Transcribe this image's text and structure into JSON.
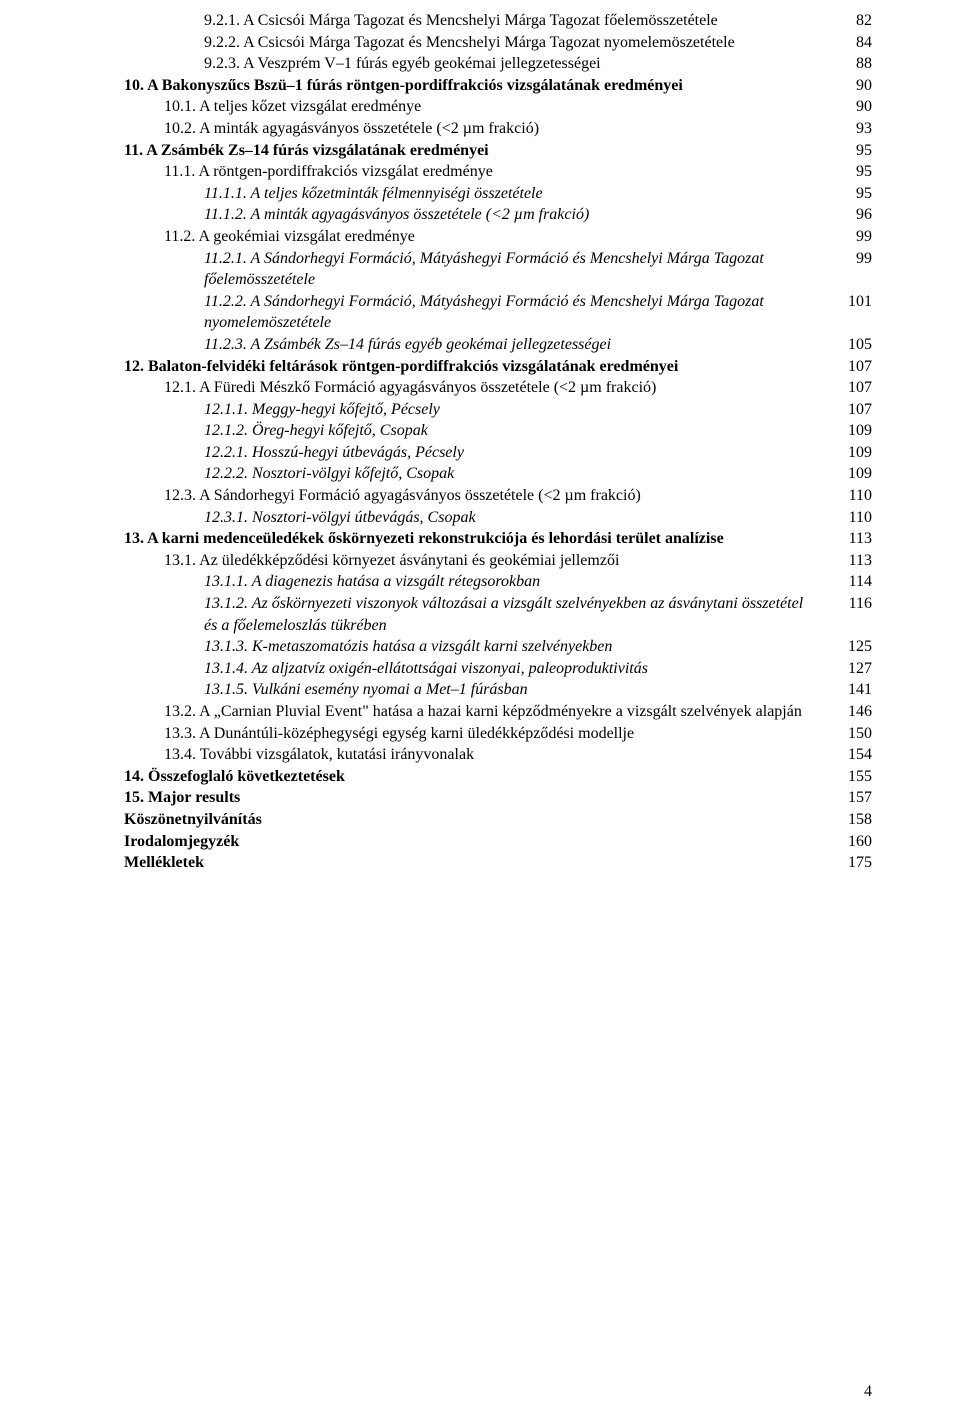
{
  "page_number": "4",
  "entries": [
    {
      "indent": 2,
      "style": "plain",
      "text": "9.2.1. A Csicsói Márga Tagozat és Mencshelyi Márga Tagozat  főelemösszetétele",
      "page": "82"
    },
    {
      "indent": 2,
      "style": "plain",
      "text": "9.2.2. A Csicsói Márga Tagozat és Mencshelyi Márga Tagozat nyomelemöszetétele",
      "page": "84"
    },
    {
      "indent": 2,
      "style": "plain",
      "text": "9.2.3. A Veszprém V–1 fúrás egyéb geokémai jellegzetességei",
      "page": "88"
    },
    {
      "indent": 0,
      "style": "bold",
      "text": "10. A Bakonyszűcs Bszü–1 fúrás röntgen-pordiffrakciós vizsgálatának eredményei",
      "page": "90"
    },
    {
      "indent": 1,
      "style": "plain",
      "text": "10.1. A teljes kőzet vizsgálat eredménye",
      "page": "90"
    },
    {
      "indent": 1,
      "style": "plain",
      "text": "10.2. A minták agyagásványos összetétele (<2 µm frakció)",
      "page": "93"
    },
    {
      "indent": 0,
      "style": "bold",
      "text": "11. A Zsámbék Zs–14 fúrás vizsgálatának eredményei",
      "page": "95"
    },
    {
      "indent": 1,
      "style": "plain",
      "text": "11.1. A röntgen-pordiffrakciós vizsgálat eredménye",
      "page": "95"
    },
    {
      "indent": 2,
      "style": "italic",
      "text": "11.1.1. A teljes kőzetminták félmennyiségi összetétele",
      "page": "95"
    },
    {
      "indent": 2,
      "style": "italic",
      "text": "11.1.2. A minták agyagásványos összetétele (<2 µm frakció)",
      "page": "96"
    },
    {
      "indent": 1,
      "style": "plain",
      "text": "11.2. A geokémiai vizsgálat eredménye",
      "page": "99"
    },
    {
      "indent": 2,
      "style": "italic",
      "text": "11.2.1. A Sándorhegyi Formáció, Mátyáshegyi Formáció és Mencshelyi Márga Tagozat főelemösszetétele",
      "page": "99"
    },
    {
      "indent": 2,
      "style": "italic",
      "text": "11.2.2. A Sándorhegyi Formáció, Mátyáshegyi Formáció és Mencshelyi Márga Tagozat nyomelemöszetétele",
      "page": "101"
    },
    {
      "indent": 2,
      "style": "italic",
      "text": "11.2.3. A Zsámbék Zs–14 fúrás egyéb geokémai jellegzetességei",
      "page": "105"
    },
    {
      "indent": 0,
      "style": "bold",
      "text": "12. Balaton-felvidéki feltárások röntgen-pordiffrakciós vizsgálatának eredményei",
      "page": "107"
    },
    {
      "indent": 1,
      "style": "plain",
      "text": "12.1. A Füredi Mészkő Formáció agyagásványos összetétele (<2 µm frakció)",
      "page": "107"
    },
    {
      "indent": 2,
      "style": "italic",
      "text": "12.1.1. Meggy-hegyi kőfejtő, Pécsely",
      "page": "107"
    },
    {
      "indent": 2,
      "style": "italic",
      "text": "12.1.2. Öreg-hegyi kőfejtő, Csopak",
      "page": "109"
    },
    {
      "indent": 2,
      "style": "italic",
      "text": "12.2.1. Hosszú-hegyi útbevágás, Pécsely",
      "page": "109"
    },
    {
      "indent": 2,
      "style": "italic",
      "text": "12.2.2. Nosztori-völgyi kőfejtő, Csopak",
      "page": "109"
    },
    {
      "indent": 1,
      "style": "plain",
      "text": "12.3. A Sándorhegyi Formáció agyagásványos összetétele (<2 µm frakció)",
      "page": "110"
    },
    {
      "indent": 2,
      "style": "italic",
      "text": "12.3.1. Nosztori-völgyi útbevágás, Csopak",
      "page": "110"
    },
    {
      "indent": 0,
      "style": "bold",
      "text": "13. A karni medenceüledékek őskörnyezeti rekonstrukciója és lehordási terület analízise",
      "page": "113"
    },
    {
      "indent": 1,
      "style": "plain",
      "text": "13.1. Az üledékképződési környezet ásványtani és geokémiai jellemzői",
      "page": "113"
    },
    {
      "indent": 2,
      "style": "italic",
      "text": "13.1.1. A diagenezis hatása a vizsgált rétegsorokban",
      "page": "114"
    },
    {
      "indent": 2,
      "style": "italic",
      "text": "13.1.2. Az őskörnyezeti viszonyok változásai a vizsgált szelvényekben az ásványtani összetétel és a főelemeloszlás tükrében",
      "page": "116"
    },
    {
      "indent": 2,
      "style": "italic",
      "text": "13.1.3. K-metaszomatózis hatása a vizsgált karni szelvényekben",
      "page": "125"
    },
    {
      "indent": 2,
      "style": "italic",
      "text": "13.1.4. Az aljzatvíz oxigén-ellátottságai viszonyai, paleoproduktivitás",
      "page": "127"
    },
    {
      "indent": 2,
      "style": "italic",
      "text": "13.1.5. Vulkáni esemény nyomai a Met–1 fúrásban",
      "page": "141"
    },
    {
      "indent": 1,
      "style": "plain",
      "text": "13.2. A „Carnian Pluvial Event\" hatása a hazai karni képződményekre a vizsgált szelvények alapján",
      "page": "146",
      "hang": true
    },
    {
      "indent": 1,
      "style": "plain",
      "text": "13.3. A Dunántúli-középhegységi egység karni üledékképződési modellje",
      "page": "150"
    },
    {
      "indent": 1,
      "style": "plain",
      "text": "13.4. További vizsgálatok, kutatási irányvonalak",
      "page": "154"
    },
    {
      "indent": 0,
      "style": "bold",
      "text": "14. Összefoglaló következtetések",
      "page": "155"
    },
    {
      "indent": 0,
      "style": "bold",
      "text": "15. Major results",
      "page": "157"
    },
    {
      "indent": 0,
      "style": "bold",
      "text": "Köszönetnyilvánítás",
      "page": "158"
    },
    {
      "indent": 0,
      "style": "bold",
      "text": "Irodalomjegyzék",
      "page": "160"
    },
    {
      "indent": 0,
      "style": "bold",
      "text": "Mellékletek",
      "page": "175"
    }
  ]
}
